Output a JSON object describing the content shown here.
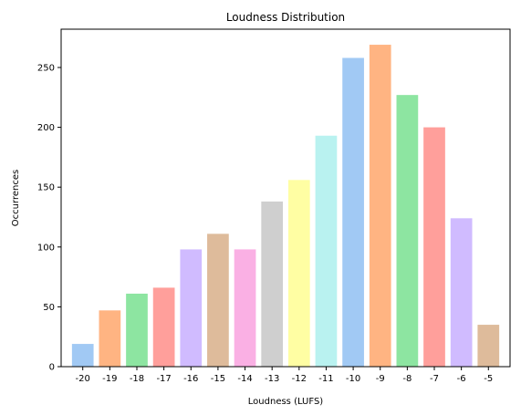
{
  "chart_data": {
    "type": "bar",
    "title": "Loudness Distribution",
    "xlabel": "Loudness (LUFS)",
    "ylabel": "Occurrences",
    "categories": [
      "-20",
      "-19",
      "-18",
      "-17",
      "-16",
      "-15",
      "-14",
      "-13",
      "-12",
      "-11",
      "-10",
      "-9",
      "-8",
      "-7",
      "-6",
      "-5"
    ],
    "values": [
      19,
      47,
      61,
      66,
      98,
      111,
      98,
      138,
      156,
      193,
      258,
      269,
      227,
      200,
      124,
      35
    ],
    "colors": [
      "#a1c9f4",
      "#ffb482",
      "#8de5a1",
      "#ff9f9b",
      "#d0bbff",
      "#debb9b",
      "#fab0e4",
      "#cfcfcf",
      "#fffea3",
      "#b9f2f0",
      "#a1c9f4",
      "#ffb482",
      "#8de5a1",
      "#ff9f9b",
      "#d0bbff",
      "#debb9b"
    ],
    "ylim": [
      0,
      282
    ],
    "yticks": [
      0,
      50,
      100,
      150,
      200,
      250
    ],
    "grid": false,
    "legend": "none"
  }
}
